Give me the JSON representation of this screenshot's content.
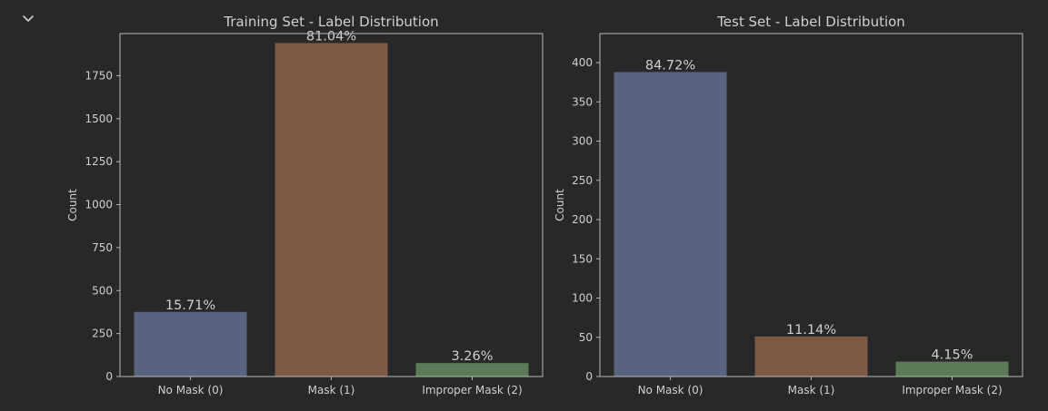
{
  "colors": {
    "background": "#282828",
    "axis": "#b8b8b8",
    "text": "#cfcfcf",
    "bars": [
      "#56647f",
      "#7e5946",
      "#5b7b58"
    ]
  },
  "toolbar": {
    "collapse_icon": "chevron-down-icon"
  },
  "chart_data": [
    {
      "type": "bar",
      "title": "Training Set - Label Distribution",
      "xlabel": "",
      "ylabel": "Count",
      "categories": [
        "No Mask (0)",
        "Mask (1)",
        "Improper Mask (2)"
      ],
      "values": [
        376,
        1940,
        78
      ],
      "value_labels": [
        "15.71%",
        "81.04%",
        "3.26%"
      ],
      "ylim": [
        0,
        1995
      ],
      "yticks": [
        0,
        250,
        500,
        750,
        1000,
        1250,
        1500,
        1750
      ],
      "grid": false
    },
    {
      "type": "bar",
      "title": "Test Set - Label Distribution",
      "xlabel": "",
      "ylabel": "Count",
      "categories": [
        "No Mask (0)",
        "Mask (1)",
        "Improper Mask (2)"
      ],
      "values": [
        388,
        51,
        19
      ],
      "value_labels": [
        "84.72%",
        "11.14%",
        "4.15%"
      ],
      "ylim": [
        0,
        437
      ],
      "yticks": [
        0,
        50,
        100,
        150,
        200,
        250,
        300,
        350,
        400
      ],
      "grid": false
    }
  ]
}
